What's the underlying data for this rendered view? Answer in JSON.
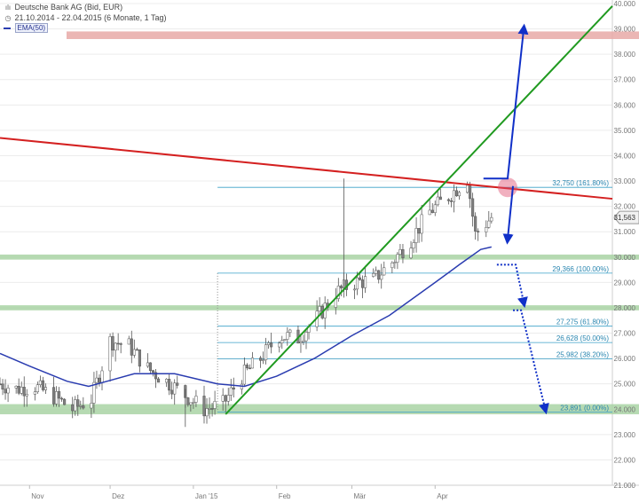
{
  "header": {
    "title": "Deutsche Bank AG (Bid, EUR)",
    "range": "21.10.2014 - 22.04.2015 (6 Monate, 1 Tag)",
    "indicator": "EMA(50)"
  },
  "chart_data": {
    "type": "candlestick",
    "ylim": [
      21000,
      40000
    ],
    "y_ticks": [
      "40.000",
      "39.000",
      "38.000",
      "37.000",
      "36.000",
      "35.000",
      "34.000",
      "33.000",
      "32.000",
      "31.000",
      "30.000",
      "29.000",
      "28.000",
      "27.000",
      "26.000",
      "25.000",
      "24.000",
      "23.000",
      "22.000",
      "21.000"
    ],
    "y_tick_values": [
      40000,
      39000,
      38000,
      37000,
      36000,
      35000,
      34000,
      33000,
      32000,
      31000,
      30000,
      29000,
      28000,
      27000,
      26000,
      25000,
      24000,
      23000,
      22000,
      21000
    ],
    "x_ticks": [
      "Nov",
      "Dez",
      "Jan '15",
      "Feb",
      "Mär",
      "Apr"
    ],
    "x_tick_dates": [
      "2014-11-01",
      "2014-12-01",
      "2015-01-01",
      "2015-02-01",
      "2015-03-01",
      "2015-04-01"
    ],
    "x_range": [
      "2014-10-21",
      "2015-06-06"
    ],
    "last_price": "31,563",
    "last_price_value": 31563,
    "series": [
      {
        "name": "Deutsche Bank AG (Bid, EUR)",
        "close_points": [
          {
            "date": "2014-10-21",
            "close": 25000
          },
          {
            "date": "2014-10-27",
            "close": 24800
          },
          {
            "date": "2014-11-03",
            "close": 24900
          },
          {
            "date": "2014-11-10",
            "close": 24500
          },
          {
            "date": "2014-11-17",
            "close": 24000
          },
          {
            "date": "2014-11-24",
            "close": 24400
          },
          {
            "date": "2014-12-01",
            "close": 26700
          },
          {
            "date": "2014-12-08",
            "close": 26500
          },
          {
            "date": "2014-12-15",
            "close": 25600
          },
          {
            "date": "2014-12-22",
            "close": 25100
          },
          {
            "date": "2015-01-05",
            "close": 24000
          },
          {
            "date": "2015-01-12",
            "close": 24200
          },
          {
            "date": "2015-01-19",
            "close": 25300
          },
          {
            "date": "2015-01-26",
            "close": 26000
          },
          {
            "date": "2015-02-02",
            "close": 26900
          },
          {
            "date": "2015-02-09",
            "close": 26800
          },
          {
            "date": "2015-02-16",
            "close": 27600
          },
          {
            "date": "2015-02-23",
            "close": 28600
          },
          {
            "date": "2015-03-02",
            "close": 29000
          },
          {
            "date": "2015-03-09",
            "close": 29100
          },
          {
            "date": "2015-03-16",
            "close": 29800
          },
          {
            "date": "2015-03-23",
            "close": 30700
          },
          {
            "date": "2015-03-30",
            "close": 31800
          },
          {
            "date": "2015-04-06",
            "close": 32400
          },
          {
            "date": "2015-04-13",
            "close": 33100
          },
          {
            "date": "2015-04-16",
            "close": 30900
          },
          {
            "date": "2015-04-22",
            "close": 31563
          }
        ]
      },
      {
        "name": "EMA(50)",
        "points": [
          {
            "date": "2014-10-21",
            "value": 26200
          },
          {
            "date": "2014-11-01",
            "value": 25700
          },
          {
            "date": "2014-11-15",
            "value": 25100
          },
          {
            "date": "2014-11-23",
            "value": 24900
          },
          {
            "date": "2014-12-10",
            "value": 25400
          },
          {
            "date": "2014-12-25",
            "value": 25400
          },
          {
            "date": "2015-01-10",
            "value": 25000
          },
          {
            "date": "2015-01-20",
            "value": 24900
          },
          {
            "date": "2015-02-01",
            "value": 25300
          },
          {
            "date": "2015-02-15",
            "value": 26000
          },
          {
            "date": "2015-03-01",
            "value": 26900
          },
          {
            "date": "2015-03-15",
            "value": 27700
          },
          {
            "date": "2015-04-01",
            "value": 29000
          },
          {
            "date": "2015-04-10",
            "value": 29700
          },
          {
            "date": "2015-04-18",
            "value": 30300
          },
          {
            "date": "2015-04-22",
            "value": 30400
          }
        ]
      }
    ],
    "fibonacci": [
      {
        "label": "32,750 (161.80%)",
        "value": 32750
      },
      {
        "label": "29,366 (100.00%)",
        "value": 29366
      },
      {
        "label": "27,275 (61.80%)",
        "value": 27275
      },
      {
        "label": "26,628 (50.00%)",
        "value": 26628
      },
      {
        "label": "25,982 (38.20%)",
        "value": 25982
      },
      {
        "label": "23,891 (0.00%)",
        "value": 23891
      }
    ],
    "fibonacci_range": [
      "2015-01-10",
      "2015-06-06"
    ],
    "zones": [
      {
        "color": "#e8a9a7",
        "from": 38600,
        "to": 38900
      },
      {
        "color": "#a9d3a5",
        "from": 29900,
        "to": 30100
      },
      {
        "color": "#a9d3a5",
        "from": 27900,
        "to": 28100
      },
      {
        "color": "#a9d3a5",
        "from": 23800,
        "to": 24200
      }
    ],
    "trendlines": [
      {
        "color": "#d42020",
        "from": {
          "date": "2014-10-21",
          "value": 34700
        },
        "to": {
          "date": "2015-06-06",
          "value": 32300
        }
      },
      {
        "color": "#209a20",
        "from": {
          "date": "2015-01-13",
          "value": 23800
        },
        "to": {
          "date": "2015-06-06",
          "value": 39900
        }
      }
    ],
    "colors": {
      "ema": "#2a3cb0",
      "fib": "#3aa0c8",
      "arrows": "#1030c8",
      "price_wicks": "#555555",
      "bull": "#ffffff",
      "bear": "#808080",
      "highlight": "#e05070"
    }
  }
}
